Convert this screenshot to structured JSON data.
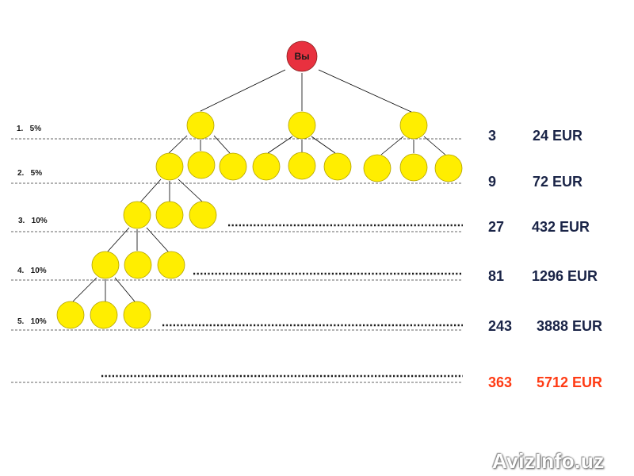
{
  "root_label": "Вы",
  "levels": [
    {
      "label": "1.   5%",
      "count": "3",
      "amount": "24 EUR"
    },
    {
      "label": "2.   5%",
      "count": "9",
      "amount": "72 EUR"
    },
    {
      "label": "3.   10%",
      "count": "27",
      "amount": "432 EUR"
    },
    {
      "label": "4.   10%",
      "count": "81",
      "amount": "1296 EUR"
    },
    {
      "label": "5.   10%",
      "count": "243",
      "amount": "3888 EUR"
    }
  ],
  "total": {
    "count": "363",
    "amount": "5712 EUR"
  },
  "watermark": "AvizInfo.uz",
  "colors": {
    "root_node": "#e8313f",
    "member_node": "#ffee00",
    "node_outline": "#b0a000",
    "stat_text": "#1a2447",
    "total_text": "#ff3b14"
  }
}
